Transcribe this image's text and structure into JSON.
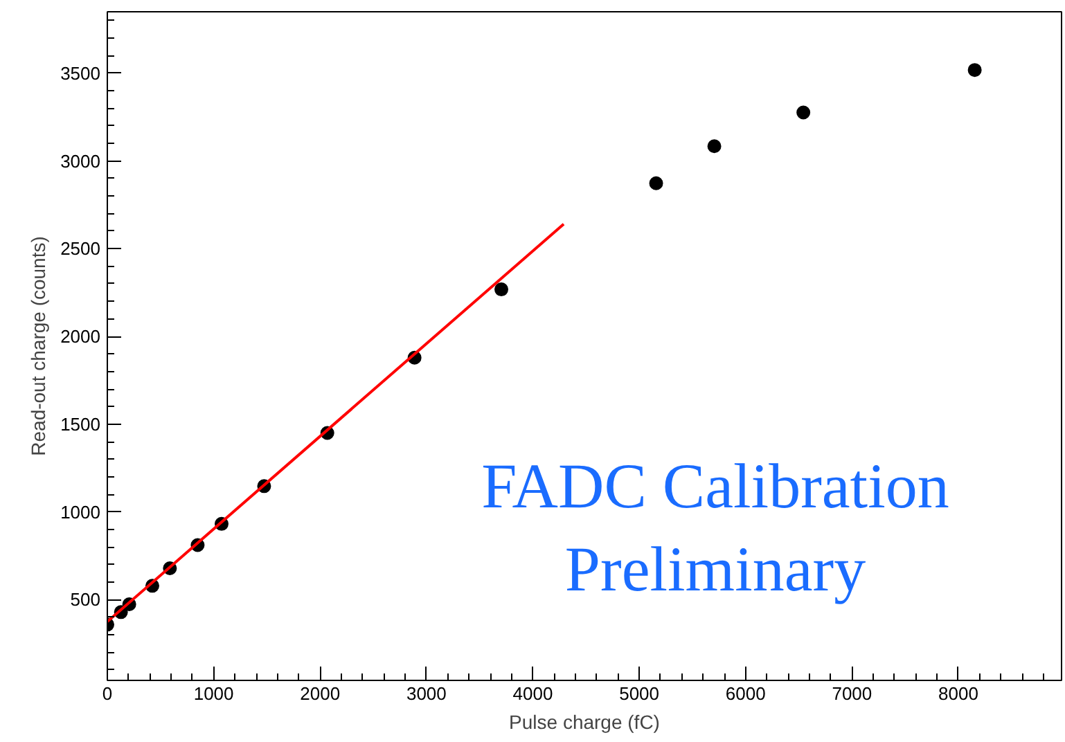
{
  "chart_data": {
    "type": "scatter",
    "xlabel": "Pulse charge (fC)",
    "ylabel": "Read-out charge (counts)",
    "xlim": [
      0,
      8970
    ],
    "ylim": [
      40,
      3850
    ],
    "xticks": [
      0,
      1000,
      2000,
      3000,
      4000,
      5000,
      6000,
      7000,
      8000
    ],
    "yticks": [
      500,
      1000,
      1500,
      2000,
      2500,
      3000,
      3500
    ],
    "grid": false,
    "series": [
      {
        "color": "#000000",
        "marker": "circle",
        "x": [
          0,
          128,
          206,
          423,
          588,
          849,
          1074,
          1474,
          2068,
          2888,
          3704,
          5159,
          5706,
          6543,
          8154
        ],
        "values": [
          358,
          429,
          474,
          579,
          679,
          811,
          932,
          1147,
          1450,
          1879,
          2268,
          2873,
          3084,
          3276,
          3518
        ]
      },
      {
        "type": "line",
        "marker": "none",
        "color": "#ff0000",
        "line_style": "solid",
        "x": [
          0,
          4290
        ],
        "values": [
          375,
          2640
        ]
      }
    ],
    "annotations": [
      "FADC Calibration",
      "Preliminary"
    ]
  }
}
